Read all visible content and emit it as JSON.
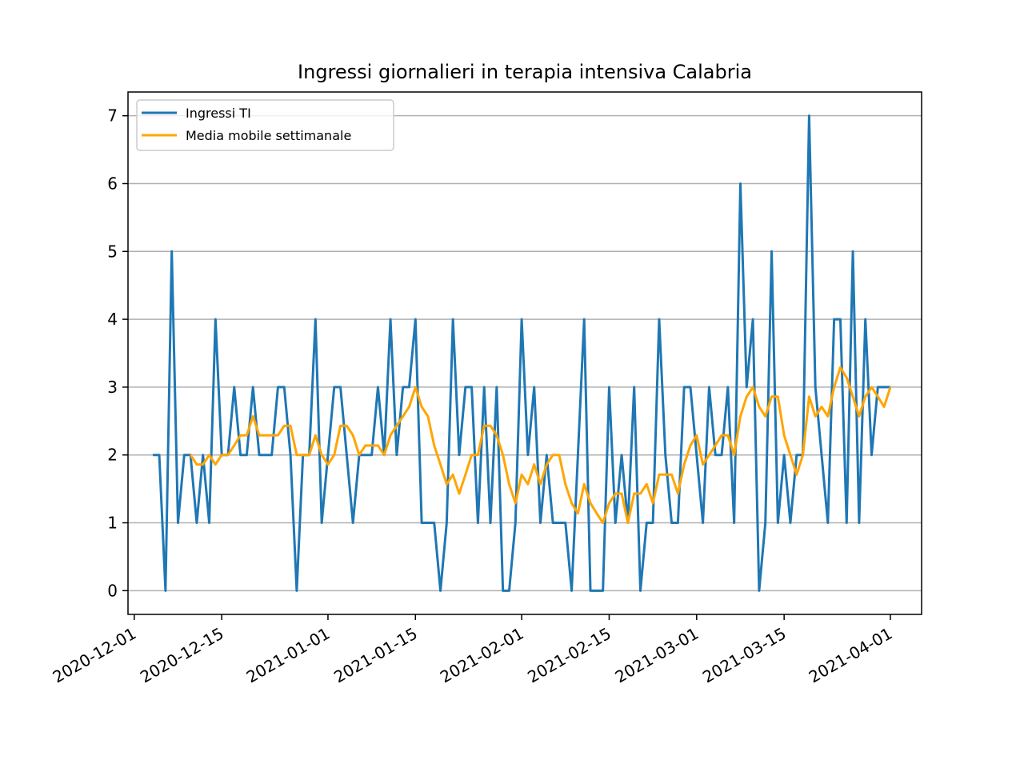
{
  "chart_data": {
    "type": "line",
    "title": "Ingressi giornalieri in terapia intensiva Calabria",
    "xlabel": "",
    "ylabel": "",
    "x_axis": "date",
    "x_start": "2020-12-04",
    "xlim": [
      "2020-11-30",
      "2021-04-06"
    ],
    "ylim": [
      -0.35,
      7.35
    ],
    "x_ticks": [
      "2020-12-01",
      "2020-12-15",
      "2021-01-01",
      "2021-01-15",
      "2021-02-01",
      "2021-02-15",
      "2021-03-01",
      "2021-03-15",
      "2021-04-01"
    ],
    "y_ticks": [
      0,
      1,
      2,
      3,
      4,
      5,
      6,
      7
    ],
    "grid": "horizontal",
    "legend_position": "top-left",
    "series": [
      {
        "name": "Ingressi TI",
        "color": "#1f77b4",
        "values": [
          2,
          2,
          0,
          5,
          1,
          2,
          2,
          1,
          2,
          1,
          4,
          2,
          2,
          3,
          2,
          2,
          3,
          2,
          2,
          2,
          3,
          3,
          2,
          0,
          2,
          2,
          4,
          1,
          2,
          3,
          3,
          2,
          1,
          2,
          2,
          2,
          3,
          2,
          4,
          2,
          3,
          3,
          4,
          1,
          1,
          1,
          0,
          1,
          4,
          2,
          3,
          3,
          1,
          3,
          1,
          3,
          0,
          0,
          1,
          4,
          2,
          3,
          1,
          2,
          1,
          1,
          1,
          0,
          2,
          4,
          0,
          0,
          0,
          3,
          1,
          2,
          1,
          3,
          0,
          1,
          1,
          4,
          2,
          1,
          1,
          3,
          3,
          2,
          1,
          3,
          2,
          2,
          3,
          1,
          6,
          3,
          4,
          0,
          1,
          5,
          1,
          2,
          1,
          2,
          2,
          7,
          3,
          2,
          1,
          4,
          4,
          1,
          5,
          1,
          4,
          2,
          3,
          3,
          3
        ]
      },
      {
        "name": "Media mobile settimanale",
        "color": "#ffa500",
        "start_offset": 6,
        "values": [
          2,
          1.86,
          1.86,
          2,
          1.86,
          2,
          2,
          2.14,
          2.29,
          2.29,
          2.57,
          2.29,
          2.29,
          2.29,
          2.29,
          2.43,
          2.43,
          2,
          2,
          2,
          2.29,
          2,
          1.86,
          2,
          2.43,
          2.43,
          2.29,
          2,
          2.14,
          2.14,
          2.14,
          2,
          2.29,
          2.43,
          2.57,
          2.71,
          3,
          2.71,
          2.57,
          2.14,
          1.86,
          1.57,
          1.71,
          1.43,
          1.71,
          2,
          2,
          2.43,
          2.43,
          2.29,
          2,
          1.57,
          1.29,
          1.71,
          1.57,
          1.86,
          1.57,
          1.86,
          2,
          2,
          1.57,
          1.29,
          1.14,
          1.57,
          1.29,
          1.14,
          1,
          1.29,
          1.43,
          1.43,
          1,
          1.43,
          1.43,
          1.57,
          1.29,
          1.71,
          1.71,
          1.71,
          1.43,
          1.86,
          2.14,
          2.29,
          1.86,
          2,
          2.14,
          2.29,
          2.29,
          2,
          2.57,
          2.86,
          3,
          2.71,
          2.57,
          2.86,
          2.86,
          2.29,
          2,
          1.71,
          2,
          2.86,
          2.57,
          2.71,
          2.57,
          3,
          3.29,
          3.14,
          2.86,
          2.57,
          2.86,
          3,
          2.86,
          2.71,
          3
        ]
      }
    ]
  }
}
